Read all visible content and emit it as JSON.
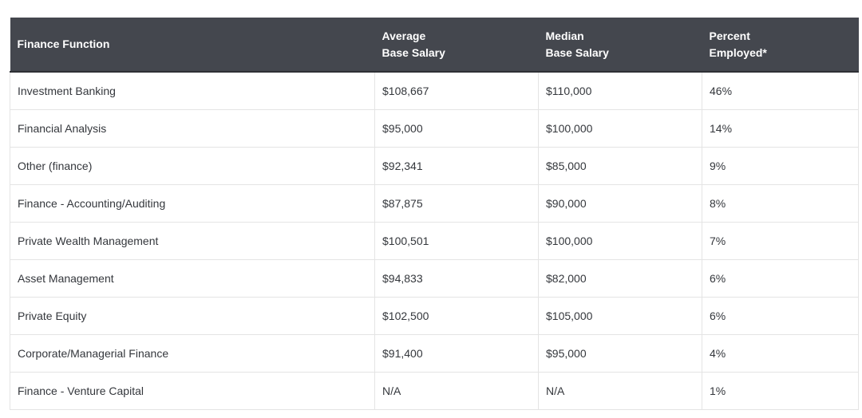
{
  "table": {
    "headers": [
      {
        "lines": [
          "Finance Function"
        ]
      },
      {
        "lines": [
          "Average",
          "Base Salary"
        ]
      },
      {
        "lines": [
          "Median",
          "Base Salary"
        ]
      },
      {
        "lines": [
          "Percent",
          "Employed*"
        ]
      }
    ],
    "rows": [
      [
        "Investment Banking",
        "$108,667",
        "$110,000",
        "46%"
      ],
      [
        "Financial Analysis",
        "$95,000",
        "$100,000",
        "14%"
      ],
      [
        "Other (finance)",
        "$92,341",
        "$85,000",
        "9%"
      ],
      [
        "Finance - Accounting/Auditing",
        "$87,875",
        "$90,000",
        "8%"
      ],
      [
        "Private Wealth Management",
        "$100,501",
        "$100,000",
        "7%"
      ],
      [
        "Asset Management",
        "$94,833",
        "$82,000",
        "6%"
      ],
      [
        "Private Equity",
        "$102,500",
        "$105,000",
        "6%"
      ],
      [
        "Corporate/Managerial Finance",
        "$91,400",
        "$95,000",
        "4%"
      ],
      [
        "Finance - Venture Capital",
        "N/A",
        "N/A",
        "1%"
      ]
    ]
  }
}
